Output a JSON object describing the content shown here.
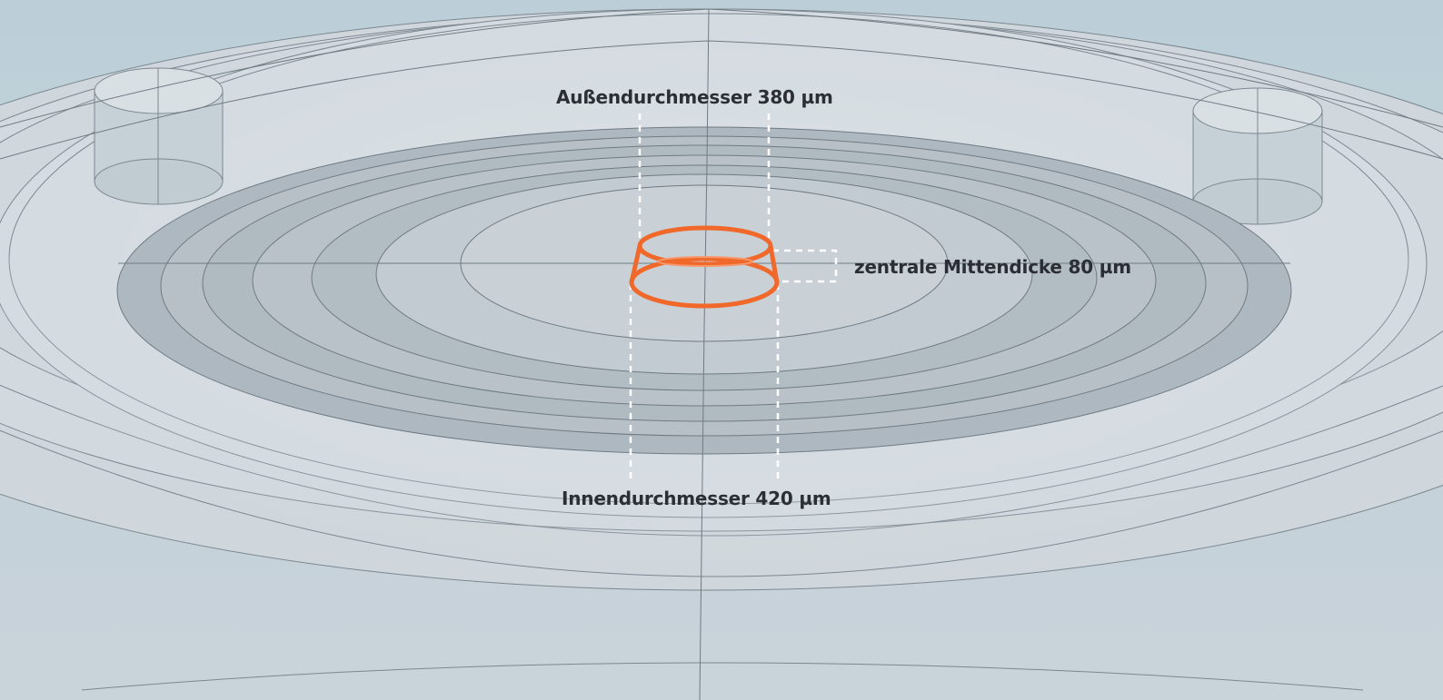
{
  "annotations": {
    "outer_diameter": "Außendurchmesser 380 µm",
    "center_thickness": "zentrale Mittendicke 80 µm",
    "inner_diameter": "Innendurchmesser 420 µm"
  },
  "colors": {
    "background": "#c4d3db",
    "body_fill": "#c9d3da",
    "edge_line": "#6f7a83",
    "groove_fill": "#aab4bc",
    "highlight": "#f0692a",
    "dimension_line": "#ffffff"
  }
}
